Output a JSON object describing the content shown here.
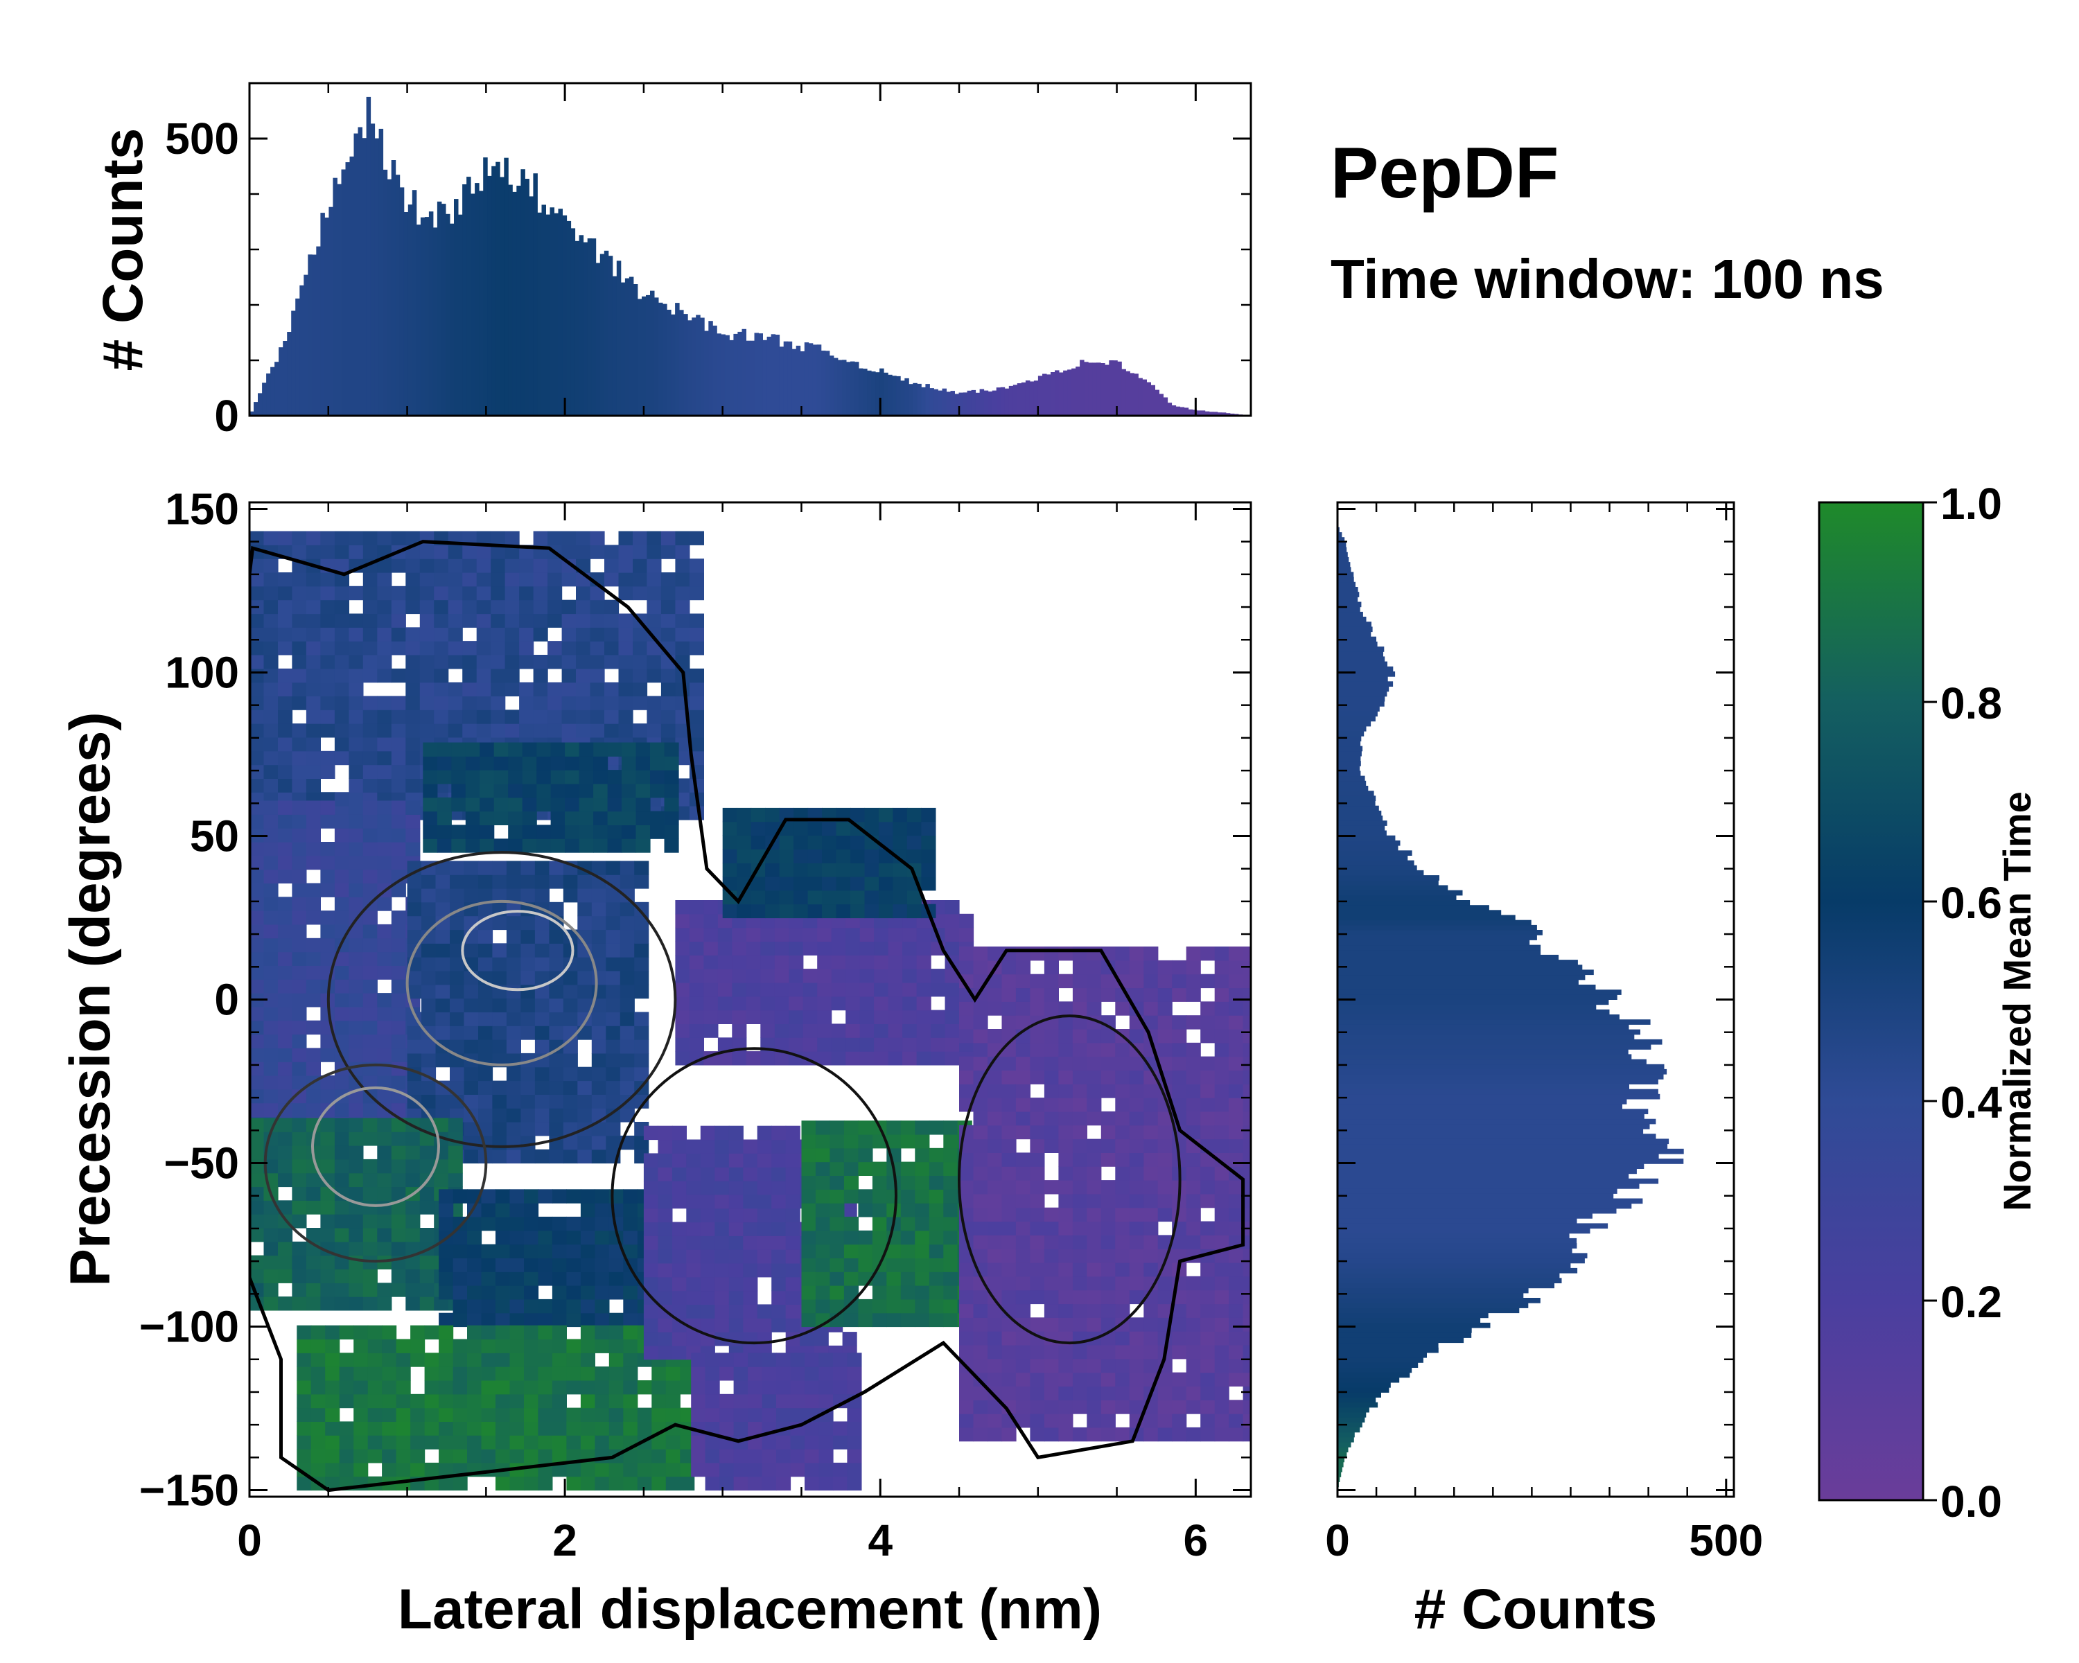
{
  "chart_data": {
    "type": "heatmap",
    "annotation_title": "PepDF",
    "annotation_subtitle": "Time window: 100 ns",
    "main": {
      "xlabel": "Lateral displacement (nm)",
      "ylabel": "Precession (degrees)",
      "xlim": [
        0,
        6.35
      ],
      "ylim": [
        -152,
        152
      ],
      "xticks": [
        "0",
        "2",
        "4",
        "6"
      ],
      "yticks": [
        "150",
        "100",
        "50",
        "0",
        "−50",
        "−100",
        "−150"
      ],
      "regions": [
        {
          "x": [
            0,
            2.8
          ],
          "y": [
            55,
            140
          ],
          "t": 0.44
        },
        {
          "x": [
            1.1,
            2.7
          ],
          "y": [
            45,
            75
          ],
          "t": 0.65
        },
        {
          "x": [
            0,
            1.0
          ],
          "y": [
            -40,
            60
          ],
          "t": 0.35
        },
        {
          "x": [
            1.0,
            2.5
          ],
          "y": [
            -50,
            40
          ],
          "t": 0.48
        },
        {
          "x": [
            0,
            1.3
          ],
          "y": [
            -95,
            -40
          ],
          "t": 0.82
        },
        {
          "x": [
            1.2,
            2.5
          ],
          "y": [
            -100,
            -60
          ],
          "t": 0.6
        },
        {
          "x": [
            0.3,
            2.8
          ],
          "y": [
            -150,
            -100
          ],
          "t": 0.9
        },
        {
          "x": [
            2.5,
            3.8
          ],
          "y": [
            -110,
            -40
          ],
          "t": 0.22
        },
        {
          "x": [
            2.7,
            4.5
          ],
          "y": [
            -20,
            30
          ],
          "t": 0.18
        },
        {
          "x": [
            3.0,
            4.3
          ],
          "y": [
            25,
            55
          ],
          "t": 0.62
        },
        {
          "x": [
            3.5,
            4.5
          ],
          "y": [
            -100,
            -40
          ],
          "t": 0.88
        },
        {
          "x": [
            4.5,
            6.3
          ],
          "y": [
            -135,
            15
          ],
          "t": 0.12
        },
        {
          "x": [
            2.8,
            3.8
          ],
          "y": [
            -150,
            -110
          ],
          "t": 0.2
        }
      ]
    },
    "top_hist": {
      "ylabel": "# Counts",
      "ylim": [
        0,
        600
      ],
      "yticks": [
        0,
        500
      ],
      "xlim": [
        0,
        6.35
      ],
      "x": [
        0.0,
        0.25,
        0.5,
        0.6,
        0.75,
        0.85,
        1.0,
        1.15,
        1.3,
        1.45,
        1.6,
        1.8,
        1.95,
        2.1,
        2.3,
        2.55,
        2.8,
        3.0,
        3.3,
        3.6,
        4.0,
        4.2,
        4.5,
        4.8,
        5.1,
        5.35,
        5.5,
        5.7,
        5.85,
        6.0,
        6.2,
        6.35
      ],
      "y": [
        0,
        150,
        380,
        480,
        540,
        470,
        390,
        350,
        380,
        430,
        440,
        410,
        360,
        320,
        270,
        210,
        180,
        150,
        140,
        120,
        80,
        60,
        40,
        50,
        80,
        100,
        95,
        60,
        20,
        10,
        5,
        0
      ],
      "color_t": [
        0.45,
        0.45,
        0.46,
        0.47,
        0.47,
        0.48,
        0.5,
        0.52,
        0.55,
        0.56,
        0.58,
        0.57,
        0.56,
        0.55,
        0.52,
        0.5,
        0.45,
        0.42,
        0.4,
        0.4,
        0.5,
        0.45,
        0.3,
        0.18,
        0.15,
        0.13,
        0.13,
        0.12,
        0.12,
        0.12,
        0.12,
        0.12
      ]
    },
    "right_hist": {
      "xlabel": "# Counts",
      "xlim": [
        0,
        510
      ],
      "xticks": [
        0,
        500
      ],
      "ylim": [
        -152,
        152
      ],
      "y": [
        -150,
        -140,
        -130,
        -120,
        -110,
        -100,
        -90,
        -80,
        -70,
        -60,
        -50,
        -40,
        -30,
        -20,
        -10,
        0,
        10,
        20,
        25,
        30,
        40,
        50,
        60,
        70,
        80,
        90,
        100,
        110,
        120,
        130,
        140,
        145
      ],
      "x": [
        0,
        10,
        30,
        60,
        110,
        180,
        260,
        300,
        320,
        380,
        420,
        400,
        390,
        400,
        390,
        350,
        300,
        250,
        250,
        170,
        110,
        70,
        50,
        30,
        30,
        60,
        70,
        50,
        30,
        20,
        10,
        0
      ],
      "color_t": [
        0.85,
        0.85,
        0.72,
        0.6,
        0.55,
        0.55,
        0.5,
        0.45,
        0.42,
        0.42,
        0.42,
        0.42,
        0.42,
        0.45,
        0.47,
        0.5,
        0.5,
        0.5,
        0.55,
        0.55,
        0.5,
        0.48,
        0.48,
        0.47,
        0.47,
        0.46,
        0.46,
        0.46,
        0.46,
        0.46,
        0.46,
        0.46
      ]
    },
    "colorbar": {
      "label": "Normalized Mean Time",
      "ticks": [
        "0.0",
        "0.2",
        "0.4",
        "0.6",
        "0.8",
        "1.0"
      ],
      "range": [
        0,
        1
      ],
      "colors": [
        "#6a3d9a",
        "#4a3f9f",
        "#2f4b96",
        "#073b68",
        "#145f60",
        "#1f8a2a"
      ]
    }
  }
}
